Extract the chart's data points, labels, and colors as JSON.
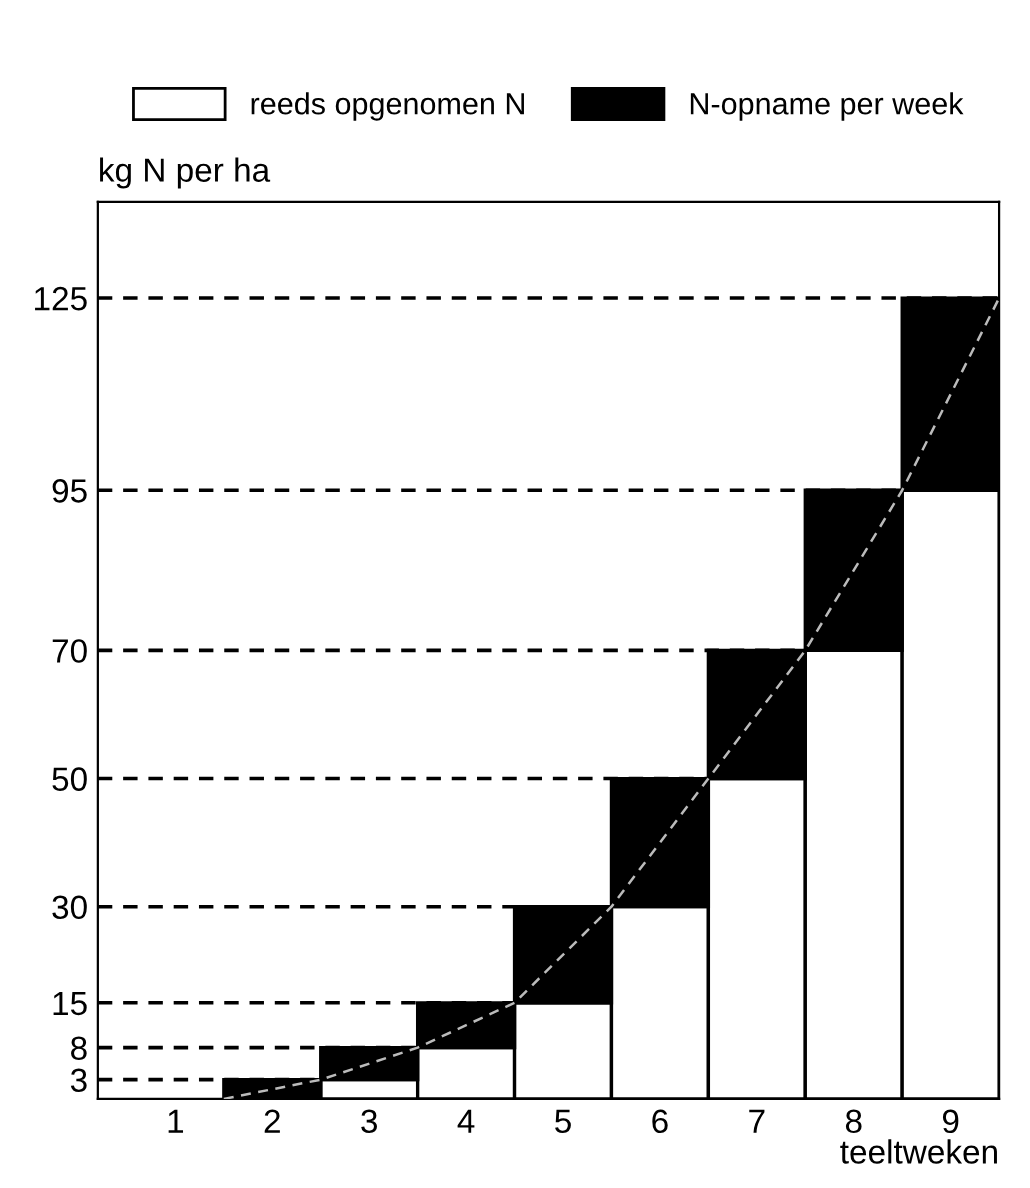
{
  "chart_data": {
    "type": "bar",
    "stacked": true,
    "ylabel": "kg N per ha",
    "xlabel": "teeltweken",
    "x": [
      2,
      3,
      4,
      5,
      6,
      7,
      8,
      9
    ],
    "xlim": [
      0.2,
      9.5
    ],
    "xticks": [
      1,
      2,
      3,
      4,
      5,
      6,
      7,
      8,
      9
    ],
    "ylim": [
      0,
      140
    ],
    "yticks": [
      3,
      8,
      15,
      30,
      50,
      70,
      95,
      125
    ],
    "series": [
      {
        "name": "reeds opgenomen N",
        "color": "#ffffff",
        "values": [
          0,
          3,
          8,
          15,
          30,
          50,
          70,
          95
        ]
      },
      {
        "name": "N-opname per week",
        "color": "#000000",
        "values": [
          3,
          5,
          7,
          15,
          20,
          20,
          25,
          30
        ]
      },
      {
        "type": "line",
        "color": "#bbbbbb",
        "line_style": "dashed",
        "marker": "none",
        "x": [
          1.5,
          2.5,
          3.5,
          4.5,
          5.5,
          6.5,
          7.5,
          8.5,
          9.5
        ],
        "values": [
          0,
          3,
          8,
          15,
          30,
          50,
          70,
          95,
          125
        ]
      }
    ],
    "ref_lines": [
      {
        "axis": "y",
        "value": 3,
        "color": "#000000",
        "line_style": "dashed"
      },
      {
        "axis": "y",
        "value": 8,
        "color": "#000000",
        "line_style": "dashed"
      },
      {
        "axis": "y",
        "value": 15,
        "color": "#000000",
        "line_style": "dashed"
      },
      {
        "axis": "y",
        "value": 30,
        "color": "#000000",
        "line_style": "dashed"
      },
      {
        "axis": "y",
        "value": 50,
        "color": "#000000",
        "line_style": "dashed"
      },
      {
        "axis": "y",
        "value": 70,
        "color": "#000000",
        "line_style": "dashed"
      },
      {
        "axis": "y",
        "value": 95,
        "color": "#000000",
        "line_style": "dashed"
      },
      {
        "axis": "y",
        "value": 125,
        "color": "#000000",
        "line_style": "dashed"
      }
    ],
    "legend": "top",
    "grid": false
  }
}
